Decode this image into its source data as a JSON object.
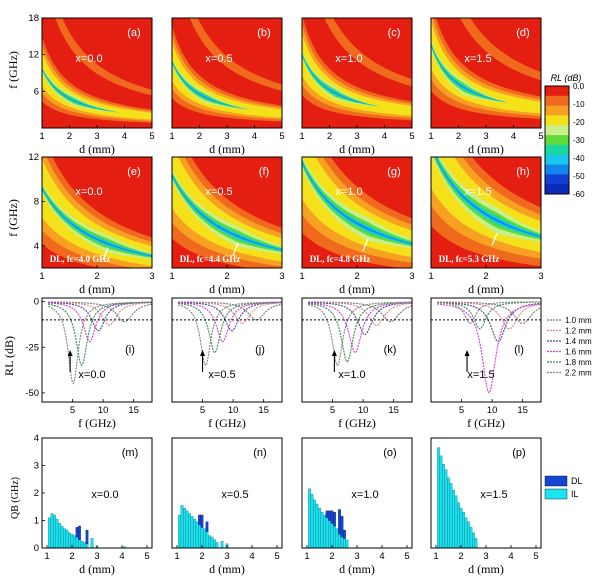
{
  "colors": {
    "background": "#e41e10",
    "contour_levels": [
      "#e41e10",
      "#f06a1e",
      "#f7a021",
      "#f5e11a",
      "#c8ef8a",
      "#5fdc3c",
      "#1bd8a0",
      "#18c6ee",
      "#1585ee",
      "#123fd6"
    ],
    "dl_bar": "#1646d0",
    "il_bar": "#19e6f0",
    "rl_curves": [
      "#777777",
      "#d8888e",
      "#4a4a90",
      "#d040d0",
      "#3a8a50",
      "#808080"
    ]
  },
  "chart_data": [
    {
      "type": "heatmap",
      "panel": "(a)",
      "x_label": "0.0",
      "xlim": [
        1,
        5
      ],
      "ylim": [
        0,
        18
      ],
      "xticks": [
        1,
        2,
        3,
        4,
        5
      ],
      "yticks": [
        6,
        12,
        18
      ],
      "xlabel": "d (mm)",
      "ylabel": "f (GHz)"
    },
    {
      "type": "heatmap",
      "panel": "(b)",
      "x_label": "0.5",
      "xlim": [
        1,
        5
      ],
      "ylim": [
        0,
        18
      ],
      "xticks": [
        1,
        2,
        3,
        4,
        5
      ],
      "xlabel": "d (mm)"
    },
    {
      "type": "heatmap",
      "panel": "(c)",
      "x_label": "1.0",
      "xlim": [
        1,
        5
      ],
      "ylim": [
        0,
        18
      ],
      "xticks": [
        1,
        2,
        3,
        4,
        5
      ],
      "xlabel": "d (mm)"
    },
    {
      "type": "heatmap",
      "panel": "(d)",
      "x_label": "1.5",
      "xlim": [
        1,
        5
      ],
      "ylim": [
        0,
        18
      ],
      "xticks": [
        1,
        2,
        3,
        4,
        5
      ],
      "xlabel": "d (mm)"
    },
    {
      "type": "heatmap",
      "panel": "(e)",
      "x_label": "0.0",
      "xlim": [
        1,
        3
      ],
      "ylim": [
        2,
        12
      ],
      "xticks": [
        1,
        2,
        3
      ],
      "yticks": [
        4,
        8,
        12
      ],
      "xlabel": "d (mm)",
      "ylabel": "f (GHz)",
      "annotation": "DL, fc=4.0 GHz",
      "fc": 4.0
    },
    {
      "type": "heatmap",
      "panel": "(f)",
      "x_label": "0.5",
      "xlim": [
        1,
        3
      ],
      "ylim": [
        2,
        12
      ],
      "xticks": [
        1,
        2,
        3
      ],
      "xlabel": "d (mm)",
      "annotation": "DL, fc=4.4 GHz",
      "fc": 4.4
    },
    {
      "type": "heatmap",
      "panel": "(g)",
      "x_label": "1.0",
      "xlim": [
        1,
        3
      ],
      "ylim": [
        2,
        12
      ],
      "xticks": [
        1,
        2,
        3
      ],
      "xlabel": "d (mm)",
      "annotation": "DL, fc=4.8 GHz",
      "fc": 4.8
    },
    {
      "type": "heatmap",
      "panel": "(h)",
      "x_label": "1.5",
      "xlim": [
        1,
        3
      ],
      "ylim": [
        2,
        12
      ],
      "xticks": [
        1,
        2,
        3
      ],
      "xlabel": "d (mm)",
      "annotation": "DL, fc=5.3 GHz",
      "fc": 5.3
    },
    {
      "type": "line",
      "panel": "(i)",
      "x_label": "0.0",
      "xlim": [
        0,
        18
      ],
      "ylim": [
        -55,
        2
      ],
      "xticks": [
        5,
        10,
        15
      ],
      "yticks": [
        0,
        -25,
        -50
      ],
      "xlabel": "f (GHz)",
      "ylabel": "RL (dB)",
      "threshold": -10,
      "series": [
        {
          "name": "1.0 mm",
          "min_f": 13.5,
          "min_rl": -11
        },
        {
          "name": "1.2 mm",
          "min_f": 11.0,
          "min_rl": -13
        },
        {
          "name": "1.4 mm",
          "min_f": 9.2,
          "min_rl": -16
        },
        {
          "name": "1.6 mm",
          "min_f": 7.8,
          "min_rl": -22
        },
        {
          "name": "1.8 mm",
          "min_f": 6.5,
          "min_rl": -35
        },
        {
          "name": "2.2 mm",
          "min_f": 5.1,
          "min_rl": -45
        }
      ]
    },
    {
      "type": "line",
      "panel": "(j)",
      "x_label": "0.5",
      "xlim": [
        0,
        18
      ],
      "ylim": [
        -55,
        2
      ],
      "xticks": [
        5,
        10,
        15
      ],
      "xlabel": "f (GHz)",
      "threshold": -10,
      "series": [
        {
          "name": "1.0 mm",
          "min_f": 13.8,
          "min_rl": -10
        },
        {
          "name": "1.2 mm",
          "min_f": 11.5,
          "min_rl": -12
        },
        {
          "name": "1.4 mm",
          "min_f": 9.8,
          "min_rl": -16
        },
        {
          "name": "1.6 mm",
          "min_f": 8.3,
          "min_rl": -22
        },
        {
          "name": "1.8 mm",
          "min_f": 7.0,
          "min_rl": -28
        },
        {
          "name": "2.2 mm",
          "min_f": 5.5,
          "min_rl": -35
        }
      ]
    },
    {
      "type": "line",
      "panel": "(k)",
      "x_label": "1.0",
      "xlim": [
        0,
        18
      ],
      "ylim": [
        -55,
        2
      ],
      "xticks": [
        5,
        10,
        15
      ],
      "xlabel": "f (GHz)",
      "threshold": -10,
      "series": [
        {
          "name": "1.0 mm",
          "min_f": 14.5,
          "min_rl": -11
        },
        {
          "name": "1.2 mm",
          "min_f": 12.2,
          "min_rl": -13
        },
        {
          "name": "1.4 mm",
          "min_f": 10.3,
          "min_rl": -18
        },
        {
          "name": "1.6 mm",
          "min_f": 8.7,
          "min_rl": -28
        },
        {
          "name": "1.8 mm",
          "min_f": 7.4,
          "min_rl": -33
        },
        {
          "name": "2.2 mm",
          "min_f": 5.8,
          "min_rl": -35
        }
      ]
    },
    {
      "type": "line",
      "panel": "(l)",
      "x_label": "1.5",
      "xlim": [
        0,
        18
      ],
      "ylim": [
        -55,
        2
      ],
      "xticks": [
        5,
        10,
        15
      ],
      "xlabel": "f (GHz)",
      "threshold": -10,
      "series": [
        {
          "name": "1.0 mm",
          "min_f": 15.0,
          "min_rl": -12
        },
        {
          "name": "1.2 mm",
          "min_f": 12.8,
          "min_rl": -15
        },
        {
          "name": "1.4 mm",
          "min_f": 11.0,
          "min_rl": -22
        },
        {
          "name": "1.6 mm",
          "min_f": 9.5,
          "min_rl": -50
        },
        {
          "name": "1.8 mm",
          "min_f": 8.0,
          "min_rl": -15
        },
        {
          "name": "2.2 mm",
          "min_f": 6.4,
          "min_rl": -12
        }
      ]
    },
    {
      "type": "bar",
      "panel": "(m)",
      "x_label": "0.0",
      "xlim": [
        0.8,
        5.2
      ],
      "ylim": [
        0,
        4
      ],
      "xticks": [
        1,
        2,
        3,
        4,
        5
      ],
      "yticks": [
        0,
        1,
        2,
        3,
        4
      ],
      "xlabel": "d (mm)",
      "ylabel": "QB (GHz)",
      "d": [
        1.1,
        1.2,
        1.3,
        1.4,
        1.5,
        1.6,
        1.7,
        1.8,
        1.9,
        2.0,
        2.1,
        2.2,
        2.3,
        2.4,
        2.5,
        2.6,
        2.8,
        3.0,
        4.1
      ],
      "il": [
        1.1,
        1.25,
        1.2,
        1.05,
        0.9,
        0.8,
        0.7,
        0.65,
        0.55,
        0.5,
        0.45,
        0.4,
        0.3,
        0.25,
        0.2,
        0.15,
        0.35,
        0.05,
        0.05
      ],
      "dl": [
        0,
        0,
        0,
        0,
        0,
        0,
        0,
        0,
        0,
        0,
        0,
        0.35,
        0.5,
        0,
        0,
        0.5,
        0,
        0,
        0
      ]
    },
    {
      "type": "bar",
      "panel": "(n)",
      "x_label": "0.5",
      "xlim": [
        0.8,
        5.2
      ],
      "ylim": [
        0,
        4
      ],
      "xticks": [
        1,
        2,
        3,
        4,
        5
      ],
      "xlabel": "d (mm)",
      "d": [
        1.1,
        1.2,
        1.3,
        1.4,
        1.5,
        1.6,
        1.7,
        1.8,
        1.9,
        2.0,
        2.1,
        2.2,
        2.3,
        2.4,
        2.5,
        2.6,
        2.8,
        3.0
      ],
      "il": [
        1.2,
        1.55,
        1.45,
        1.35,
        1.25,
        1.15,
        1.05,
        0.95,
        0.85,
        0.75,
        0.7,
        0.6,
        0.45,
        0.4,
        0.3,
        0.2,
        0.25,
        0.15
      ],
      "dl": [
        0,
        0,
        0,
        0,
        0,
        0,
        0,
        0,
        0.35,
        0.45,
        0,
        0.35,
        0,
        0,
        0,
        0,
        0,
        0
      ]
    },
    {
      "type": "bar",
      "panel": "(o)",
      "x_label": "1.0",
      "xlim": [
        0.8,
        5.2
      ],
      "ylim": [
        0,
        4
      ],
      "xticks": [
        1,
        2,
        3,
        4,
        5
      ],
      "xlabel": "d (mm)",
      "d": [
        1.1,
        1.2,
        1.3,
        1.4,
        1.5,
        1.6,
        1.7,
        1.8,
        1.9,
        2.0,
        2.1,
        2.2,
        2.3,
        2.4,
        2.5,
        2.6
      ],
      "il": [
        2.15,
        1.95,
        1.75,
        1.6,
        1.45,
        1.3,
        1.2,
        1.1,
        1.0,
        0.9,
        0.8,
        0.7,
        0.5,
        0.4,
        0.35,
        0.3
      ],
      "dl": [
        0,
        0,
        0,
        0,
        0,
        0,
        0,
        0.25,
        0.35,
        0.45,
        0.5,
        0,
        0.9,
        0.75,
        0.3,
        0
      ]
    },
    {
      "type": "bar",
      "panel": "(p)",
      "x_label": "1.5",
      "xlim": [
        0.8,
        5.2
      ],
      "ylim": [
        0,
        4
      ],
      "xticks": [
        1,
        2,
        3,
        4,
        5
      ],
      "xlabel": "d (mm)",
      "d": [
        1.1,
        1.2,
        1.3,
        1.4,
        1.5,
        1.6,
        1.7,
        1.8,
        1.9,
        2.0,
        2.1,
        2.2,
        2.3,
        2.4,
        2.5,
        2.6
      ],
      "il": [
        3.65,
        3.35,
        3.05,
        2.85,
        2.55,
        2.35,
        2.1,
        1.9,
        1.65,
        1.45,
        1.3,
        1.1,
        0.95,
        0.75,
        0.55,
        0.35
      ],
      "dl": [
        0,
        0,
        0,
        0,
        0,
        0,
        0,
        0,
        0,
        0,
        0,
        0,
        0,
        0,
        0,
        0
      ]
    }
  ],
  "colorbar": {
    "title": "RL (dB)",
    "ticks": [
      "0.0",
      "-10",
      "-20",
      "-30",
      "-40",
      "-50",
      "-60"
    ]
  },
  "line_legend": [
    "1.0 mm",
    "1.2 mm",
    "1.4 mm",
    "1.6 mm",
    "1.8 mm",
    "2.2 mm"
  ],
  "bar_legend": [
    "DL",
    "IL"
  ],
  "text": {
    "y_f_ghz": "f (GHz)",
    "y_rl": "RL (dB)",
    "y_qb": "QB (GHz)",
    "x_d_mm": "d (mm)",
    "x_f_ghz": "f (GHz)",
    "x_prefix": "x="
  }
}
